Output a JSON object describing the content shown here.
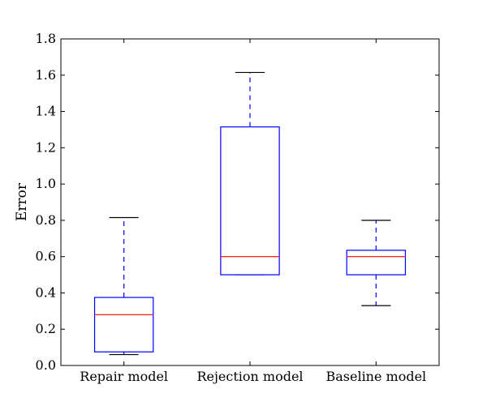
{
  "chart_data": {
    "type": "box",
    "title": "",
    "xlabel": "",
    "ylabel": "Error",
    "ylim": [
      0.0,
      1.8
    ],
    "yticks": [
      "0.0",
      "0.2",
      "0.4",
      "0.6",
      "0.8",
      "1.0",
      "1.2",
      "1.4",
      "1.6",
      "1.8"
    ],
    "categories": [
      "Repair model",
      "Rejection model",
      "Baseline model"
    ],
    "boxes": [
      {
        "label": "Repair model",
        "whisker_low": 0.06,
        "q1": 0.075,
        "median": 0.28,
        "q3": 0.375,
        "whisker_high": 0.815
      },
      {
        "label": "Rejection model",
        "whisker_low": 0.5,
        "q1": 0.5,
        "median": 0.6,
        "q3": 1.315,
        "whisker_high": 1.615
      },
      {
        "label": "Baseline model",
        "whisker_low": 0.33,
        "q1": 0.5,
        "median": 0.6,
        "q3": 0.635,
        "whisker_high": 0.8
      }
    ],
    "colors": {
      "box": "#0000ff",
      "median": "#ff0000",
      "whisker": "#0000ff",
      "cap": "#000000"
    },
    "grid": false,
    "legend": "none"
  }
}
